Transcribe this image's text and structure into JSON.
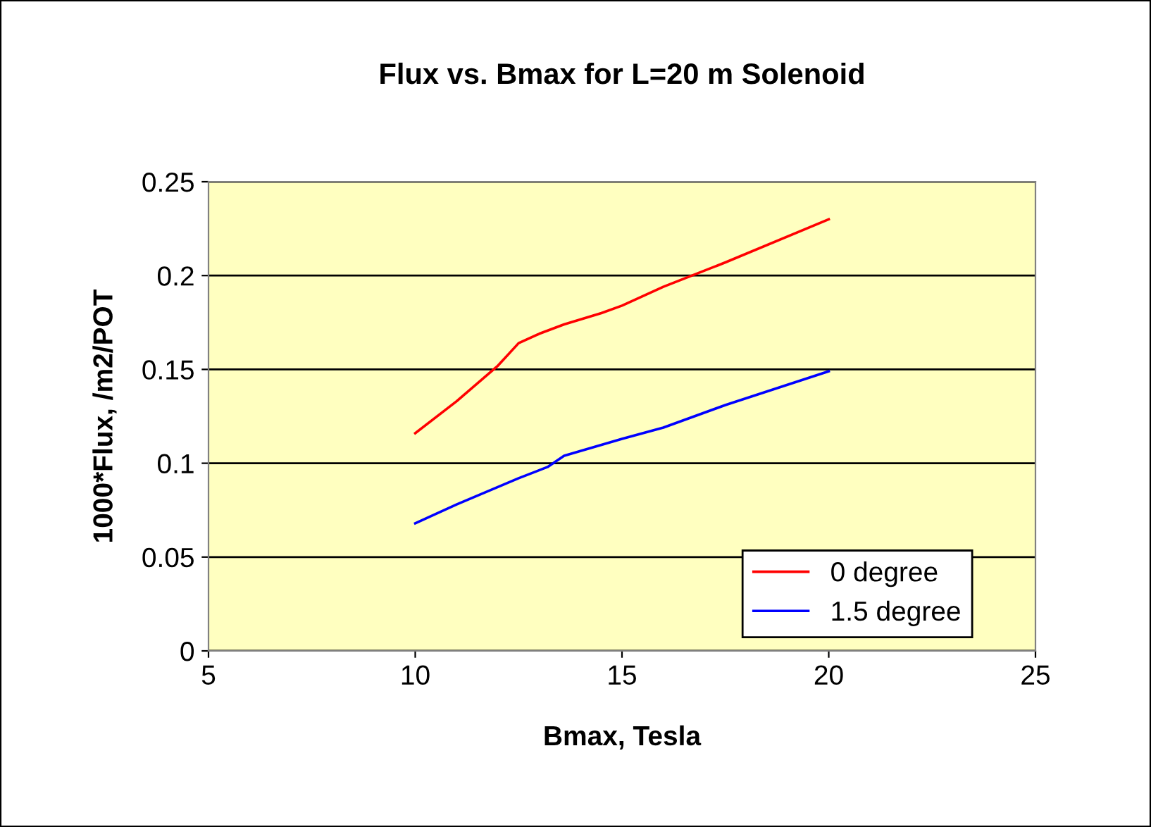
{
  "chart_data": {
    "type": "line",
    "title": "Flux vs. Bmax for L=20 m Solenoid",
    "xlabel": "Bmax, Tesla",
    "ylabel": "1000*Flux, /m2/POT",
    "series": [
      {
        "name": "0 degree",
        "color": "#ff0000",
        "x": [
          10,
          11,
          12,
          12.5,
          13,
          13.6,
          14.5,
          15,
          16,
          17.5,
          20
        ],
        "values": [
          0.116,
          0.133,
          0.152,
          0.164,
          0.169,
          0.174,
          0.18,
          0.184,
          0.194,
          0.207,
          0.23
        ]
      },
      {
        "name": "1.5 degree",
        "color": "#0000ff",
        "x": [
          10,
          11,
          12.5,
          13.2,
          13.6,
          15,
          16,
          17.5,
          20
        ],
        "values": [
          0.068,
          0.078,
          0.092,
          0.098,
          0.104,
          0.113,
          0.119,
          0.131,
          0.149
        ]
      }
    ],
    "xlim": [
      5,
      25
    ],
    "xticks": [
      5,
      10,
      15,
      20,
      25
    ],
    "ylim": [
      0,
      0.25
    ],
    "yticks": [
      0,
      0.05,
      0.1,
      0.15,
      0.2,
      0.25
    ],
    "grid": "y",
    "legend": "bottom right",
    "marker": "none",
    "line_style": "solid"
  }
}
